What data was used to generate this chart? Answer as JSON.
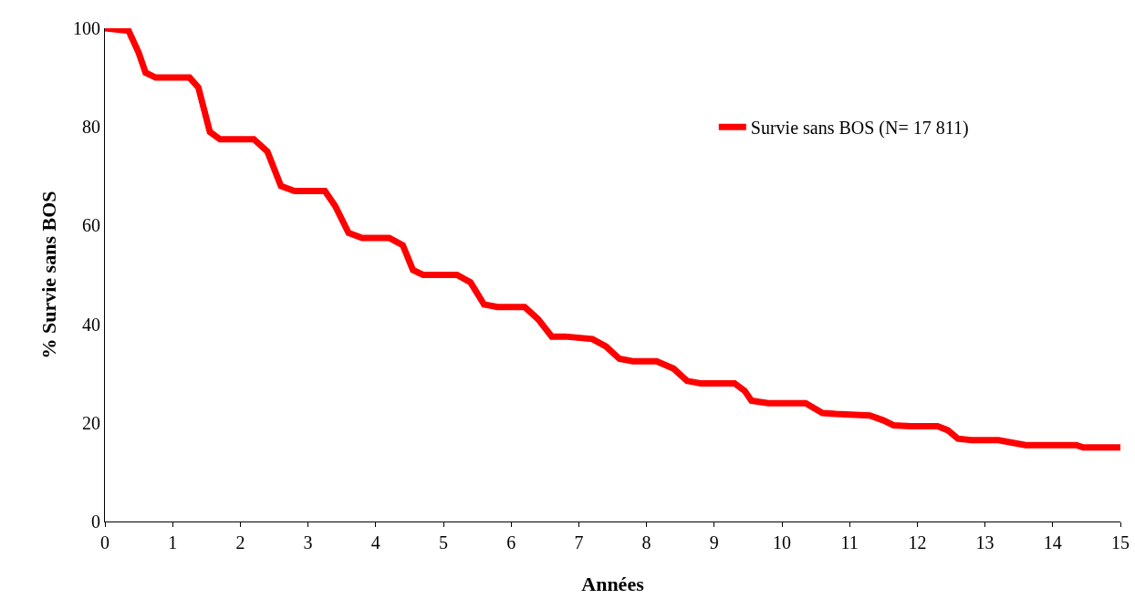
{
  "chart_data": {
    "type": "line",
    "xlabel": "Années",
    "ylabel": "% Survie sans BOS",
    "xlim": [
      0,
      15
    ],
    "xticks": [
      0,
      1,
      2,
      3,
      4,
      5,
      6,
      7,
      8,
      9,
      10,
      11,
      12,
      13,
      14,
      15
    ],
    "ylim": [
      0,
      100
    ],
    "yticks": [
      0,
      20,
      40,
      60,
      80,
      100
    ],
    "grid": false,
    "legend": "top right",
    "marker": "none",
    "line_style": "solid",
    "series": [
      {
        "name": "Survie sans BOS (N= 17 811)",
        "color": "#ff0000",
        "x": [
          0,
          0.35,
          0.5,
          0.6,
          0.75,
          1.25,
          1.38,
          1.55,
          1.7,
          2.2,
          2.4,
          2.6,
          2.8,
          3.25,
          3.4,
          3.6,
          3.8,
          4.2,
          4.4,
          4.55,
          4.7,
          5.2,
          5.4,
          5.6,
          5.8,
          6.2,
          6.4,
          6.6,
          6.8,
          7.2,
          7.4,
          7.6,
          7.8,
          8.15,
          8.4,
          8.6,
          8.8,
          9.3,
          9.45,
          9.55,
          9.8,
          10.35,
          10.6,
          10.8,
          11.3,
          11.5,
          11.65,
          11.9,
          12.3,
          12.45,
          12.6,
          12.8,
          13.2,
          13.4,
          13.6,
          14.35,
          14.45,
          15
        ],
        "values": [
          100,
          99.5,
          95,
          91,
          90,
          90,
          88,
          79,
          77.5,
          77.5,
          75,
          68,
          67,
          67,
          64,
          58.5,
          57.5,
          57.5,
          56,
          51,
          50,
          50,
          48.5,
          44,
          43.5,
          43.5,
          41,
          37.5,
          37.5,
          37,
          35.5,
          33,
          32.5,
          32.5,
          31,
          28.5,
          28,
          28,
          26.5,
          24.5,
          24,
          24,
          22,
          21.8,
          21.5,
          20.5,
          19.5,
          19.3,
          19.3,
          18.5,
          16.8,
          16.5,
          16.5,
          16,
          15.5,
          15.5,
          15,
          15
        ]
      }
    ]
  }
}
